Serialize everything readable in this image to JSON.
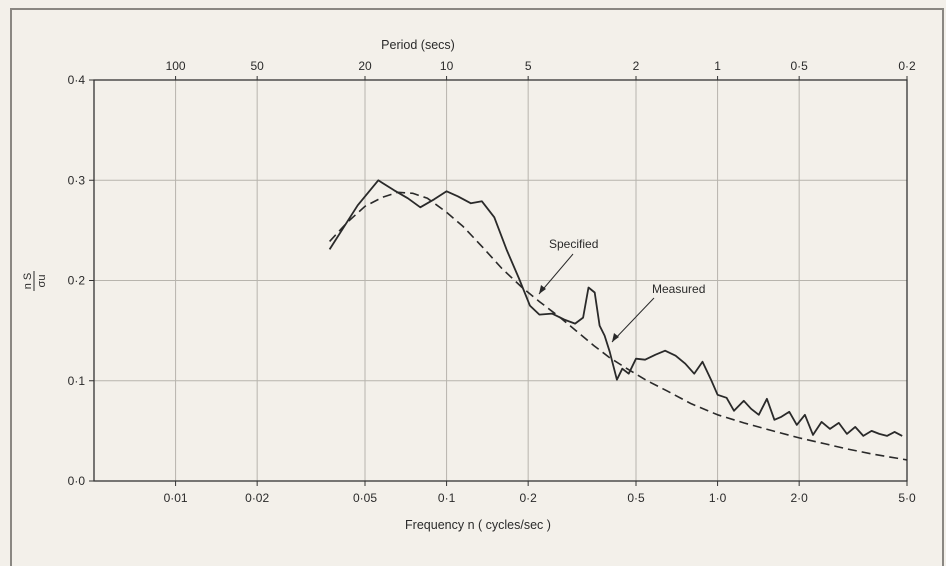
{
  "chart_data": {
    "type": "line",
    "xscale": "log",
    "xlim": [
      0.005,
      5.0
    ],
    "ylim": [
      0.0,
      0.4
    ],
    "grid": true,
    "xlabel": "Frequency n ( cycles/sec )",
    "x2label": "Period (secs)",
    "ylabel": {
      "num": "n S",
      "den": "σu"
    },
    "x_ticks": [
      {
        "value": 0.01,
        "label": "0·01"
      },
      {
        "value": 0.02,
        "label": "0·02"
      },
      {
        "value": 0.05,
        "label": "0·05"
      },
      {
        "value": 0.1,
        "label": "0·1"
      },
      {
        "value": 0.2,
        "label": "0·2"
      },
      {
        "value": 0.5,
        "label": "0·5"
      },
      {
        "value": 1.0,
        "label": "1·0"
      },
      {
        "value": 2.0,
        "label": "2·0"
      },
      {
        "value": 5.0,
        "label": "5·0"
      }
    ],
    "x2_ticks": [
      {
        "value": 0.01,
        "label": "100"
      },
      {
        "value": 0.02,
        "label": "50"
      },
      {
        "value": 0.05,
        "label": "20"
      },
      {
        "value": 0.1,
        "label": "10"
      },
      {
        "value": 0.2,
        "label": "5"
      },
      {
        "value": 0.5,
        "label": "2"
      },
      {
        "value": 1.0,
        "label": "1"
      },
      {
        "value": 2.0,
        "label": "0·5"
      },
      {
        "value": 5.0,
        "label": "0·2"
      }
    ],
    "y_ticks": [
      {
        "value": 0.0,
        "label": "0·0"
      },
      {
        "value": 0.1,
        "label": "0·1"
      },
      {
        "value": 0.2,
        "label": "0·2"
      },
      {
        "value": 0.3,
        "label": "0·3"
      },
      {
        "value": 0.4,
        "label": "0·4"
      }
    ],
    "series": [
      {
        "name": "Measured",
        "style": "solid",
        "x": [
          0.037,
          0.047,
          0.056,
          0.064,
          0.072,
          0.08,
          0.09,
          0.1,
          0.11,
          0.123,
          0.135,
          0.15,
          0.167,
          0.185,
          0.203,
          0.22,
          0.245,
          0.272,
          0.298,
          0.319,
          0.334,
          0.352,
          0.367,
          0.383,
          0.4,
          0.425,
          0.445,
          0.47,
          0.5,
          0.54,
          0.59,
          0.64,
          0.7,
          0.76,
          0.82,
          0.88,
          0.95,
          1.0,
          1.08,
          1.15,
          1.25,
          1.33,
          1.42,
          1.52,
          1.62,
          1.72,
          1.84,
          1.96,
          2.1,
          2.25,
          2.42,
          2.6,
          2.8,
          3.0,
          3.22,
          3.45,
          3.7,
          3.95,
          4.22,
          4.5,
          4.8
        ],
        "y": [
          0.231,
          0.275,
          0.3,
          0.29,
          0.282,
          0.273,
          0.281,
          0.289,
          0.284,
          0.277,
          0.279,
          0.263,
          0.23,
          0.202,
          0.175,
          0.166,
          0.167,
          0.161,
          0.157,
          0.163,
          0.193,
          0.188,
          0.155,
          0.145,
          0.129,
          0.101,
          0.112,
          0.107,
          0.122,
          0.121,
          0.126,
          0.13,
          0.125,
          0.117,
          0.107,
          0.119,
          0.1,
          0.086,
          0.083,
          0.07,
          0.08,
          0.072,
          0.066,
          0.082,
          0.061,
          0.064,
          0.069,
          0.056,
          0.066,
          0.046,
          0.059,
          0.052,
          0.058,
          0.047,
          0.054,
          0.045,
          0.05,
          0.047,
          0.045,
          0.049,
          0.045
        ]
      },
      {
        "name": "Specified",
        "style": "dashed",
        "x": [
          0.037,
          0.043,
          0.05,
          0.058,
          0.066,
          0.075,
          0.085,
          0.1,
          0.115,
          0.135,
          0.16,
          0.19,
          0.22,
          0.26,
          0.3,
          0.35,
          0.4,
          0.47,
          0.55,
          0.65,
          0.8,
          1.0,
          1.25,
          1.6,
          2.0,
          2.5,
          3.0,
          3.7,
          4.3,
          5.0
        ],
        "y": [
          0.239,
          0.258,
          0.274,
          0.283,
          0.288,
          0.287,
          0.282,
          0.268,
          0.254,
          0.234,
          0.212,
          0.193,
          0.179,
          0.164,
          0.15,
          0.135,
          0.123,
          0.111,
          0.1,
          0.09,
          0.077,
          0.066,
          0.058,
          0.05,
          0.043,
          0.037,
          0.032,
          0.027,
          0.024,
          0.021
        ]
      }
    ],
    "annotations": [
      {
        "text": "Specified",
        "target_series": "Specified"
      },
      {
        "text": "Measured",
        "target_series": "Measured"
      }
    ]
  }
}
